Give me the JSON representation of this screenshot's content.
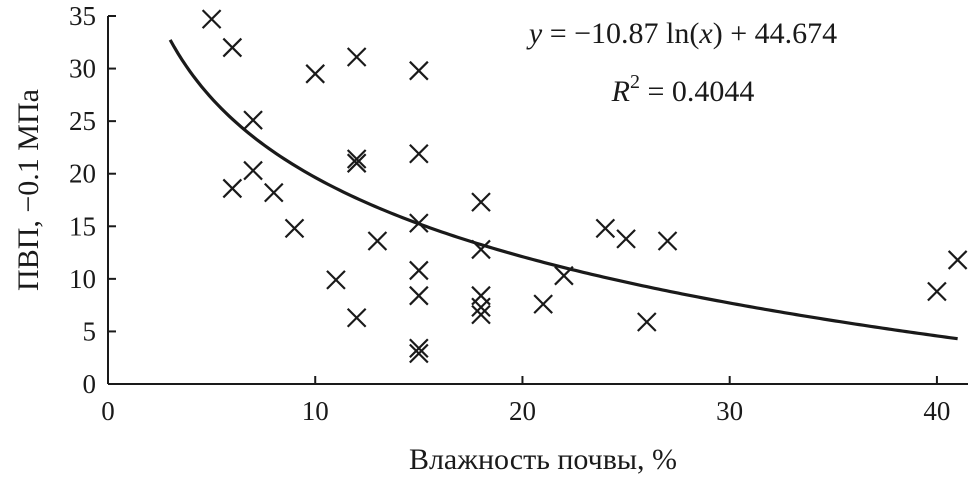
{
  "chart_data": {
    "type": "scatter",
    "xlabel": "Влажность почвы, %",
    "ylabel": "ПВП, −0.1 МПа",
    "xlim": [
      0,
      41.5
    ],
    "ylim": [
      0,
      35
    ],
    "xticks": [
      0,
      10,
      20,
      30,
      40
    ],
    "yticks": [
      0,
      5,
      10,
      15,
      20,
      25,
      30,
      35
    ],
    "grid": false,
    "legend": "none",
    "marker": "x",
    "color": "#1a1a1a",
    "points": [
      {
        "x": 5,
        "y": 34.7
      },
      {
        "x": 6,
        "y": 32.0
      },
      {
        "x": 6,
        "y": 18.6
      },
      {
        "x": 7,
        "y": 25.1
      },
      {
        "x": 7,
        "y": 20.3
      },
      {
        "x": 8,
        "y": 18.2
      },
      {
        "x": 9,
        "y": 14.8
      },
      {
        "x": 10,
        "y": 29.5
      },
      {
        "x": 11,
        "y": 9.9
      },
      {
        "x": 12,
        "y": 31.1
      },
      {
        "x": 12,
        "y": 21.4
      },
      {
        "x": 12,
        "y": 21.0
      },
      {
        "x": 12,
        "y": 6.3
      },
      {
        "x": 13,
        "y": 13.6
      },
      {
        "x": 15,
        "y": 29.8
      },
      {
        "x": 15,
        "y": 21.9
      },
      {
        "x": 15,
        "y": 15.3
      },
      {
        "x": 15,
        "y": 10.8
      },
      {
        "x": 15,
        "y": 8.4
      },
      {
        "x": 15,
        "y": 3.4
      },
      {
        "x": 15,
        "y": 2.9
      },
      {
        "x": 18,
        "y": 17.3
      },
      {
        "x": 18,
        "y": 12.8
      },
      {
        "x": 18,
        "y": 8.4
      },
      {
        "x": 18,
        "y": 7.3
      },
      {
        "x": 18,
        "y": 6.6
      },
      {
        "x": 21,
        "y": 7.6
      },
      {
        "x": 22,
        "y": 10.3
      },
      {
        "x": 24,
        "y": 14.8
      },
      {
        "x": 25,
        "y": 13.8
      },
      {
        "x": 26,
        "y": 5.9
      },
      {
        "x": 27,
        "y": 13.6
      },
      {
        "x": 40,
        "y": 8.8
      },
      {
        "x": 41,
        "y": 11.8
      }
    ],
    "trendline": {
      "type": "logarithmic",
      "a": -10.87,
      "b": 44.674,
      "x_range": [
        3,
        41
      ]
    },
    "annotations": {
      "equation_y": "y",
      "equation_x": "x",
      "equation_body_1": " = −10.87 ln(",
      "equation_body_2": ") + 44.674",
      "r2_var": "R",
      "r2_exp": "2",
      "r2_value": " = 0.4044"
    }
  }
}
